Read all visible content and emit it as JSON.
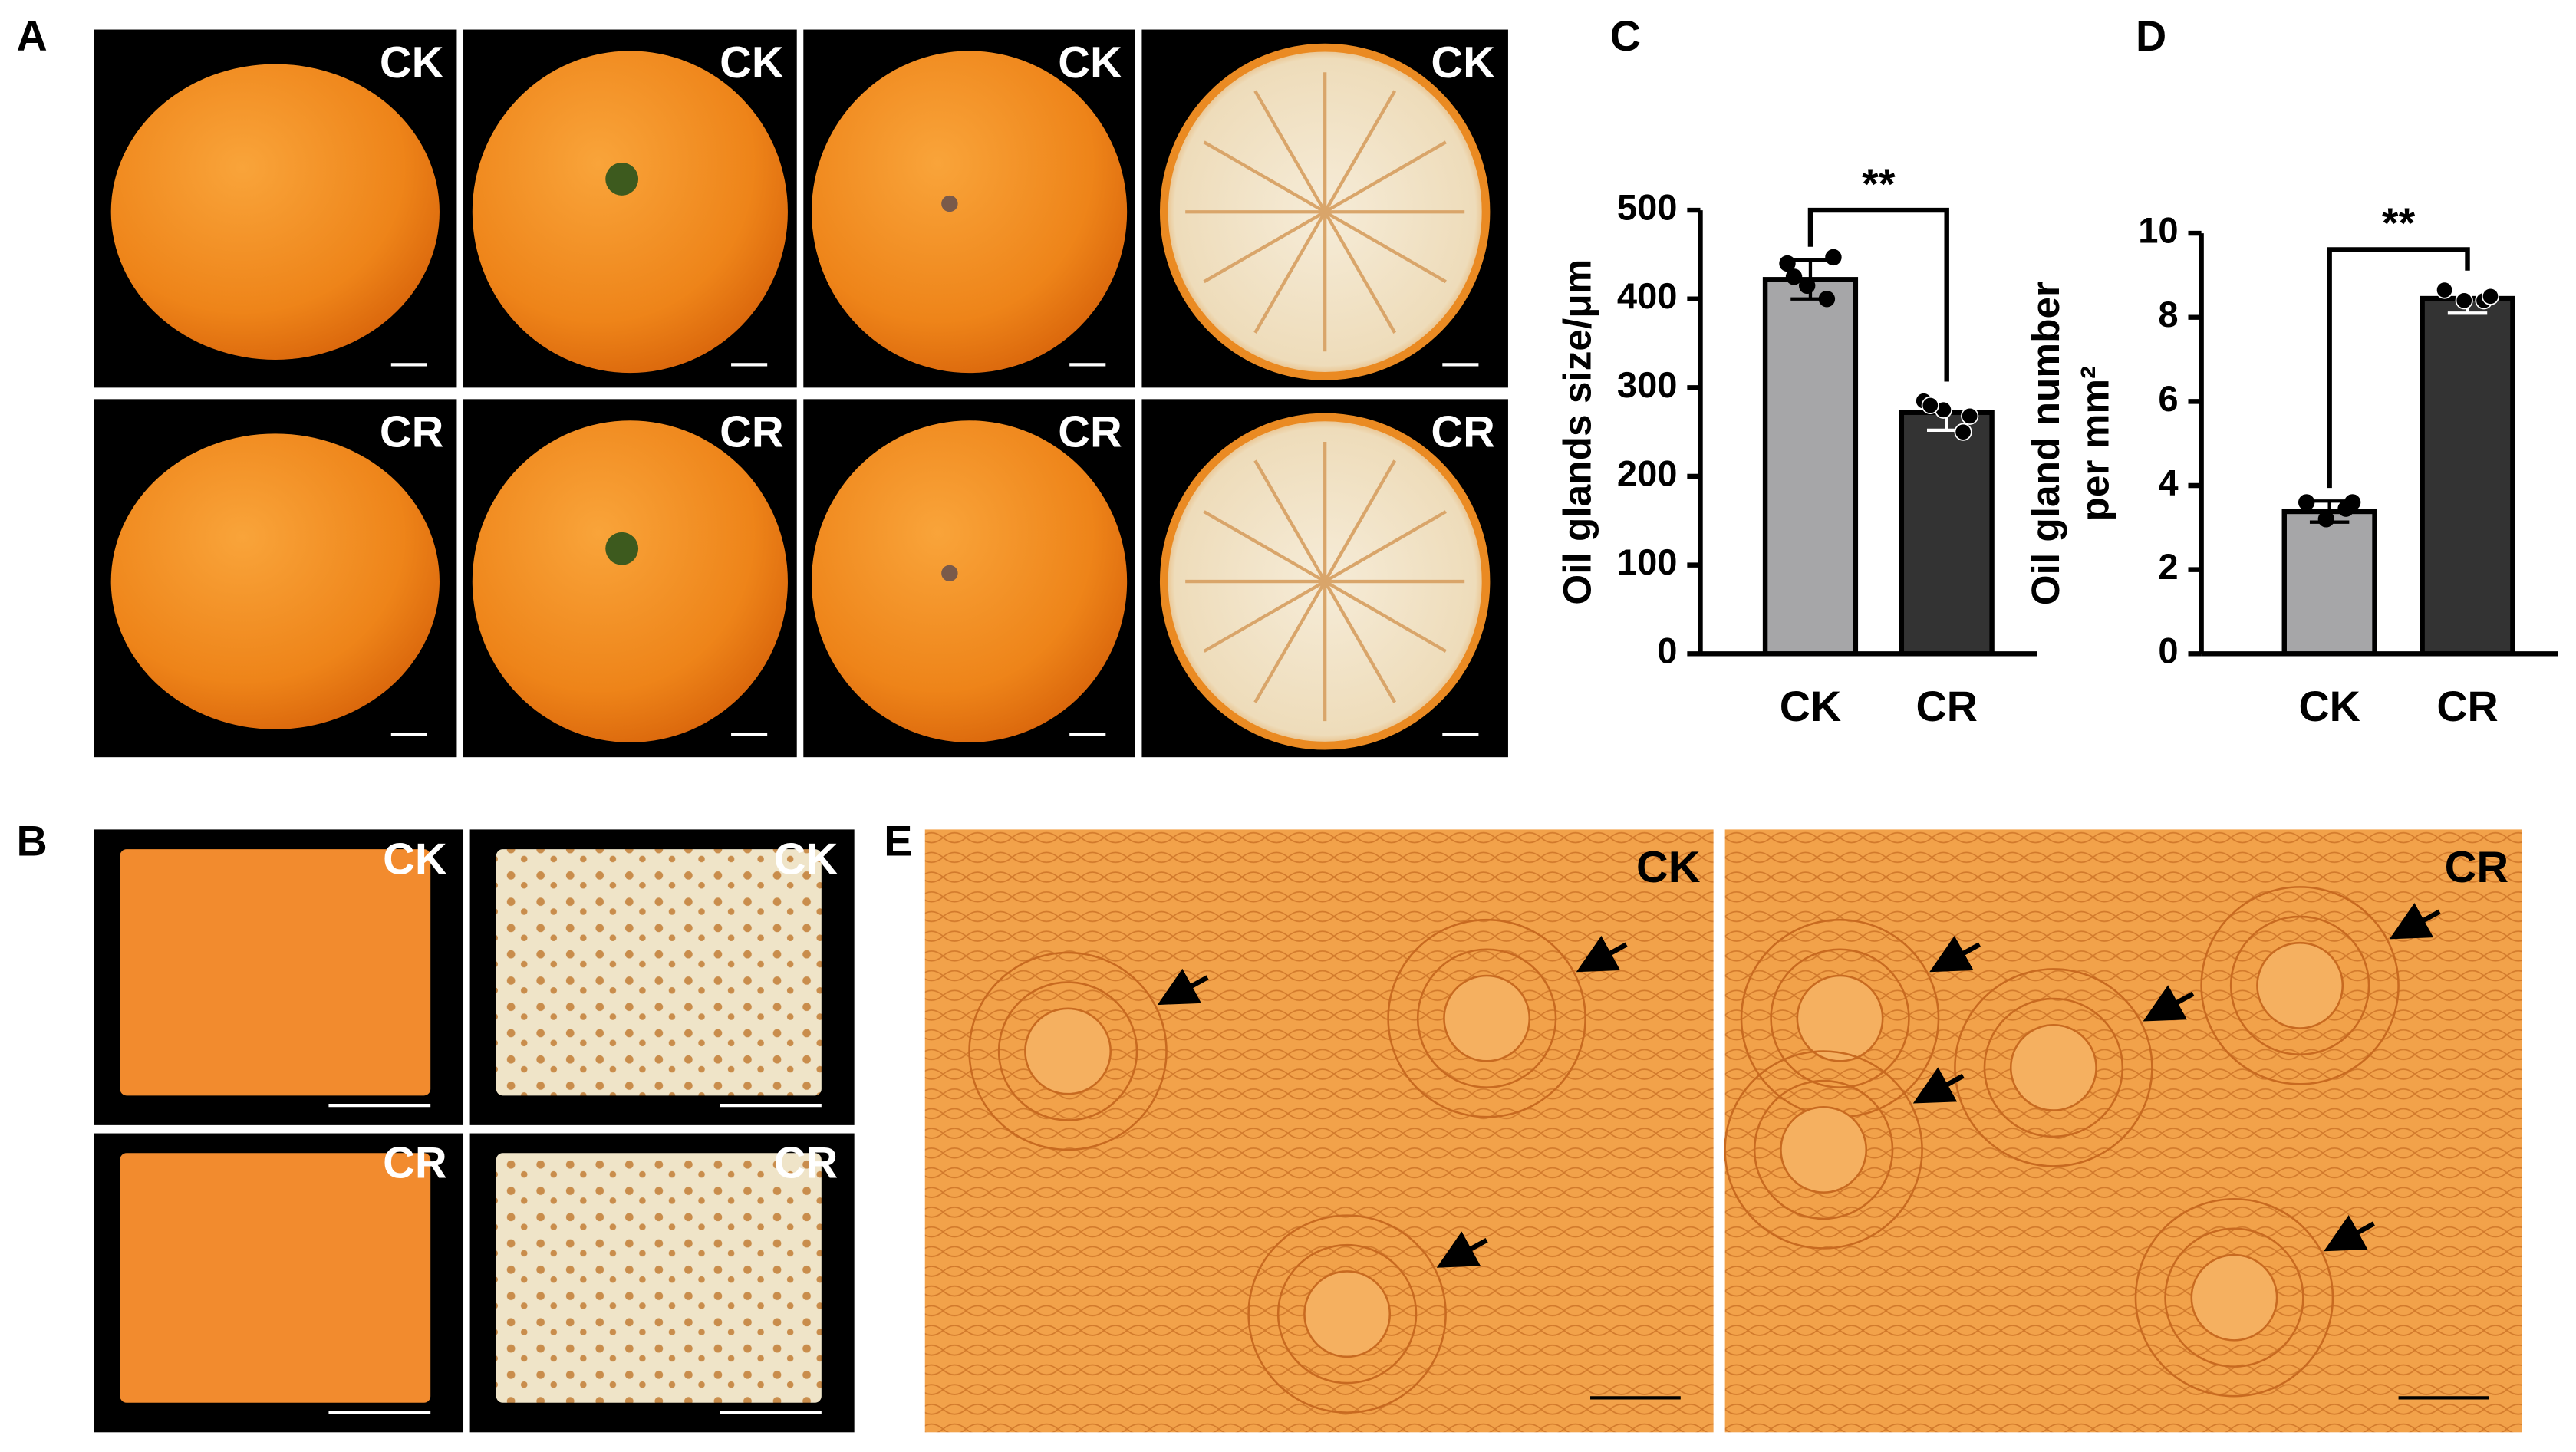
{
  "panels": {
    "A": {
      "label": "A",
      "tiles": [
        "CK",
        "CK",
        "CK",
        "CK",
        "CR",
        "CR",
        "CR",
        "CR"
      ]
    },
    "B": {
      "label": "B",
      "tiles": [
        "CK",
        "CK",
        "CR",
        "CR"
      ]
    },
    "E": {
      "label": "E",
      "tiles": [
        "CK",
        "CR"
      ]
    }
  },
  "chart_data": [
    {
      "type": "bar",
      "panel_label": "C",
      "ylabel": "Oil glands size/μm",
      "categories": [
        "CK",
        "CR"
      ],
      "values": [
        422,
        272
      ],
      "errors": [
        22,
        20
      ],
      "points": [
        [
          440,
          400,
          415,
          447,
          425
        ],
        [
          285,
          250,
          275,
          268,
          280
        ]
      ],
      "colors": [
        "#a6a6a8",
        "#333333"
      ],
      "significance": "**",
      "ylim": [
        0,
        500
      ],
      "yticks": [
        0,
        100,
        200,
        300,
        400,
        500
      ]
    },
    {
      "type": "bar",
      "panel_label": "D",
      "ylabel": [
        "Oil gland number",
        "per mm²"
      ],
      "categories": [
        "CK",
        "CR"
      ],
      "values": [
        3.38,
        8.45
      ],
      "errors": [
        0.25,
        0.35
      ],
      "points": [
        [
          3.6,
          3.45,
          3.2,
          3.6
        ],
        [
          8.65,
          8.4,
          8.4,
          8.5
        ]
      ],
      "colors": [
        "#a6a6a8",
        "#333333"
      ],
      "significance": "**",
      "ylim": [
        0,
        10
      ],
      "yticks": [
        0,
        2,
        4,
        6,
        8,
        10
      ]
    }
  ]
}
